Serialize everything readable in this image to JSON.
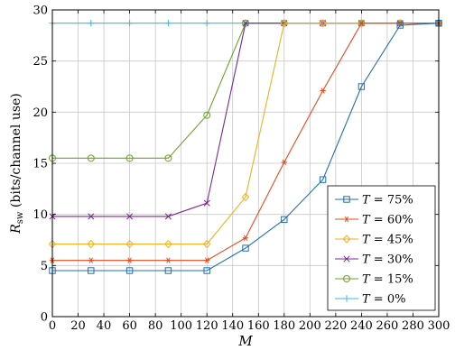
{
  "chart_data": {
    "type": "line",
    "x": [
      0,
      30,
      60,
      90,
      120,
      150,
      180,
      210,
      240,
      270,
      300
    ],
    "xlim": [
      0,
      300
    ],
    "ylim": [
      0,
      30
    ],
    "xticks": [
      "0",
      "20",
      "40",
      "60",
      "80",
      "100",
      "120",
      "140",
      "160",
      "180",
      "200",
      "220",
      "240",
      "260",
      "280",
      "300"
    ],
    "yticks": [
      "0",
      "5",
      "10",
      "15",
      "20",
      "25",
      "30"
    ],
    "xlabel": "M",
    "ylabel": {
      "main": "R",
      "sub": "sw",
      "rest": " (bits/channel use)"
    },
    "grid": true,
    "legend_position": "bottom-right",
    "series": [
      {
        "name": "T = 75%",
        "var": "T",
        "eq": " = 75%",
        "color": "#1f6fb4",
        "marker": "square",
        "values": [
          4.5,
          4.5,
          4.5,
          4.5,
          4.5,
          6.7,
          9.5,
          13.4,
          22.5,
          28.5,
          28.7
        ]
      },
      {
        "name": "T = 60%",
        "var": "T",
        "eq": " = 60%",
        "color": "#e8491d",
        "marker": "star",
        "values": [
          5.5,
          5.5,
          5.5,
          5.5,
          5.5,
          7.7,
          15.1,
          22.1,
          28.7,
          28.7,
          28.7
        ]
      },
      {
        "name": "T = 45%",
        "var": "T",
        "eq": " = 45%",
        "color": "#f0b020",
        "marker": "diamond",
        "values": [
          7.1,
          7.1,
          7.1,
          7.1,
          7.1,
          11.7,
          28.7,
          28.7,
          28.7,
          28.7,
          28.7
        ]
      },
      {
        "name": "T = 30%",
        "var": "T",
        "eq": " = 30%",
        "color": "#7b2a8f",
        "marker": "x",
        "values": [
          9.8,
          9.8,
          9.8,
          9.8,
          11.1,
          28.7,
          28.7,
          28.7,
          28.7,
          28.7,
          28.7
        ]
      },
      {
        "name": "T = 15%",
        "var": "T",
        "eq": " = 15%",
        "color": "#6aa329",
        "marker": "circle",
        "values": [
          15.5,
          15.5,
          15.5,
          15.5,
          19.7,
          28.7,
          28.7,
          28.7,
          28.7,
          28.7,
          28.7
        ]
      },
      {
        "name": "T = 0%",
        "var": "T",
        "eq": " = 0%",
        "color": "#3fb8e3",
        "marker": "plus",
        "values": [
          28.7,
          28.7,
          28.7,
          28.7,
          28.7,
          28.7,
          28.7,
          28.7,
          28.7,
          28.7,
          28.7
        ]
      }
    ]
  }
}
